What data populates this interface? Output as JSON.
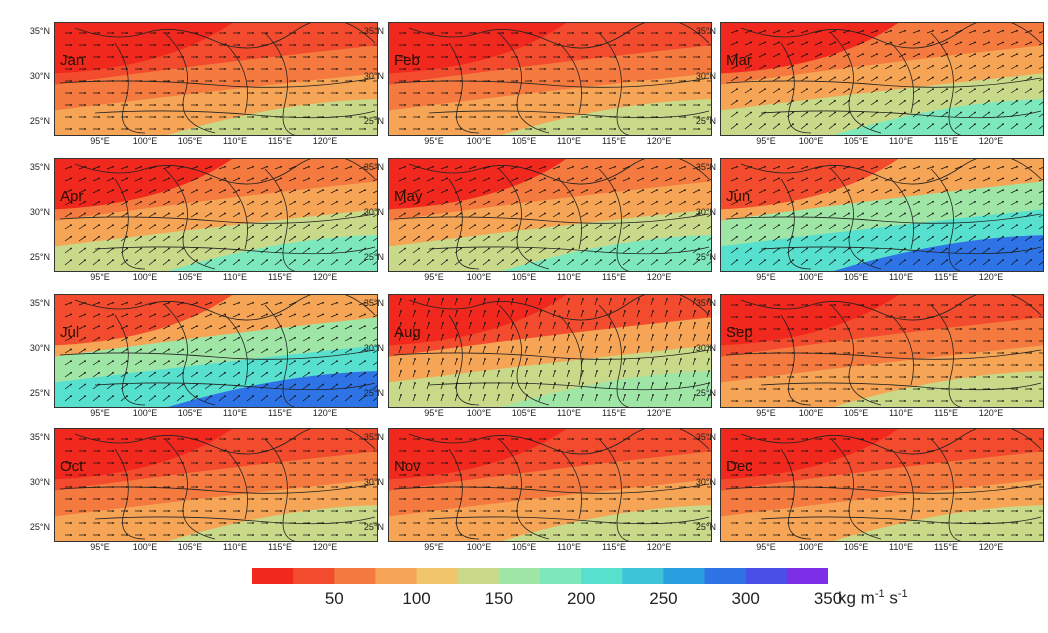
{
  "figure": {
    "panels": [
      {
        "month": "Jan",
        "style": "weak"
      },
      {
        "month": "Feb",
        "style": "weak"
      },
      {
        "month": "Mar",
        "style": "mid"
      },
      {
        "month": "Apr",
        "style": "mid"
      },
      {
        "month": "May",
        "style": "mid"
      },
      {
        "month": "Jun",
        "style": "strong"
      },
      {
        "month": "Jul",
        "style": "strong"
      },
      {
        "month": "Aug",
        "style": "mixed"
      },
      {
        "month": "Sep",
        "style": "weak"
      },
      {
        "month": "Oct",
        "style": "weak"
      },
      {
        "month": "Nov",
        "style": "weak"
      },
      {
        "month": "Dec",
        "style": "weak"
      }
    ],
    "y_ticks": [
      "35°N",
      "30°N",
      "25°N"
    ],
    "x_ticks": [
      "95°E",
      "100°E",
      "105°E",
      "110°E",
      "115°E",
      "120°E"
    ]
  },
  "colorbar": {
    "labels": [
      "50",
      "100",
      "150",
      "200",
      "250",
      "300",
      "350"
    ],
    "unit_main": "kg m",
    "unit_exp1": "-1",
    "unit_mid": " s",
    "unit_exp2": "-1",
    "colors": [
      "#f0281e",
      "#f34b2d",
      "#f47a40",
      "#f6a455",
      "#f0c46a",
      "#c9d98a",
      "#9fe6a6",
      "#7ee8bd",
      "#58e0cf",
      "#3ec4d8",
      "#2a9fe0",
      "#2f74e6",
      "#4a4fe8",
      "#7d2fe8"
    ]
  }
}
